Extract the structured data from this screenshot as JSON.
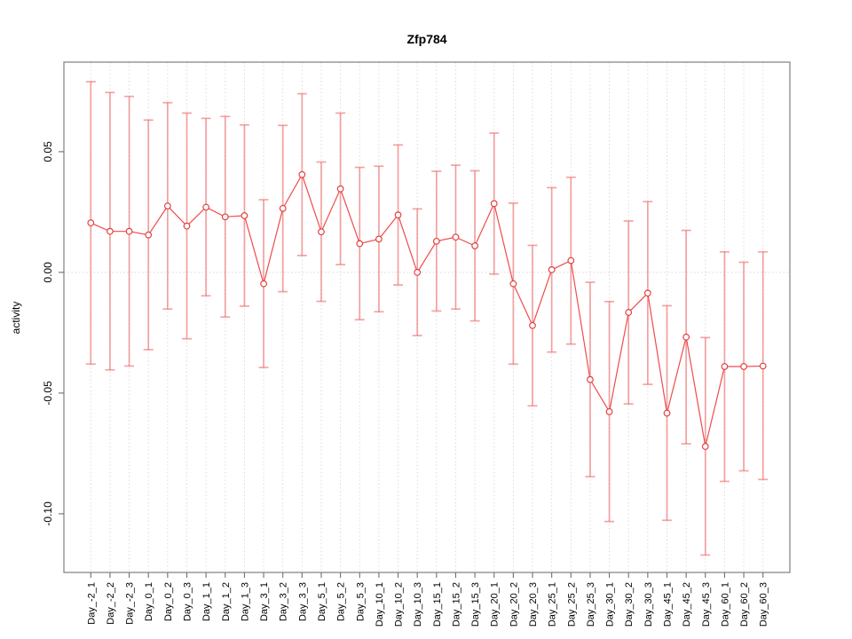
{
  "chart_data": {
    "type": "scatter",
    "subtype": "points-with-error-bars-connected-by-line",
    "title": "Zfp784",
    "xlabel": "",
    "ylabel": "activity",
    "legend": "none",
    "grid": {
      "vertical_dotted_per_category": true,
      "horizontal_dotted_zero_line": true
    },
    "ylim": [
      -0.1243,
      0.0871
    ],
    "y_ticks": [
      {
        "label": "0.05",
        "value": 0.05
      },
      {
        "label": "0.00",
        "value": 0.0
      },
      {
        "label": "-0.05",
        "value": -0.05
      },
      {
        "label": "-0.10",
        "value": -0.1
      }
    ],
    "categories": [
      "Day_-2_1",
      "Day_-2_2",
      "Day_-2_3",
      "Day_0_1",
      "Day_0_2",
      "Day_0_3",
      "Day_1_1",
      "Day_1_2",
      "Day_1_3",
      "Day_3_1",
      "Day_3_2",
      "Day_3_3",
      "Day_5_1",
      "Day_5_2",
      "Day_5_3",
      "Day_10_1",
      "Day_10_2",
      "Day_10_3",
      "Day_15_1",
      "Day_15_2",
      "Day_15_3",
      "Day_20_1",
      "Day_20_2",
      "Day_20_3",
      "Day_25_1",
      "Day_25_2",
      "Day_25_3",
      "Day_30_1",
      "Day_30_2",
      "Day_30_3",
      "Day_45_1",
      "Day_45_2",
      "Day_45_3",
      "Day_60_1",
      "Day_60_2",
      "Day_60_3"
    ],
    "series": [
      {
        "name": "activity",
        "values": [
          0.0205,
          0.017,
          0.017,
          0.0155,
          0.0275,
          0.0192,
          0.027,
          0.023,
          0.0235,
          -0.0047,
          0.0265,
          0.0405,
          0.0168,
          0.0346,
          0.0119,
          0.0138,
          0.0238,
          0.0,
          0.0129,
          0.0146,
          0.011,
          0.0285,
          -0.0047,
          -0.022,
          0.0011,
          0.0049,
          -0.0444,
          -0.0577,
          -0.0166,
          -0.0086,
          -0.0583,
          -0.0268,
          -0.0721,
          -0.039,
          -0.039,
          -0.0388
        ],
        "error_high": [
          0.079,
          0.0745,
          0.0729,
          0.0631,
          0.0703,
          0.066,
          0.0638,
          0.0646,
          0.0611,
          0.0301,
          0.0609,
          0.074,
          0.0457,
          0.066,
          0.0435,
          0.044,
          0.0528,
          0.0263,
          0.0419,
          0.0444,
          0.0421,
          0.0577,
          0.0287,
          0.0112,
          0.0351,
          0.0394,
          -0.0041,
          -0.0121,
          0.0213,
          0.0293,
          -0.0138,
          0.0174,
          -0.027,
          0.0085,
          0.0042,
          0.0085
        ],
        "error_low": [
          -0.038,
          -0.0404,
          -0.0388,
          -0.032,
          -0.0152,
          -0.0275,
          -0.0097,
          -0.0185,
          -0.014,
          -0.0394,
          -0.008,
          0.007,
          -0.012,
          0.0032,
          -0.0196,
          -0.0163,
          -0.0052,
          -0.0262,
          -0.016,
          -0.0152,
          -0.0201,
          -0.0007,
          -0.038,
          -0.0553,
          -0.033,
          -0.0297,
          -0.0846,
          -0.1032,
          -0.0545,
          -0.0464,
          -0.1027,
          -0.071,
          -0.1171,
          -0.0866,
          -0.0822,
          -0.0858
        ]
      }
    ],
    "colors": {
      "point": "#e23b3b",
      "line": "#ef4b4b",
      "error_bar": "#ef6a6a",
      "grid": "#d9d9d9",
      "frame": "#7f7f7f",
      "text": "#000000",
      "background": "#ffffff"
    }
  }
}
